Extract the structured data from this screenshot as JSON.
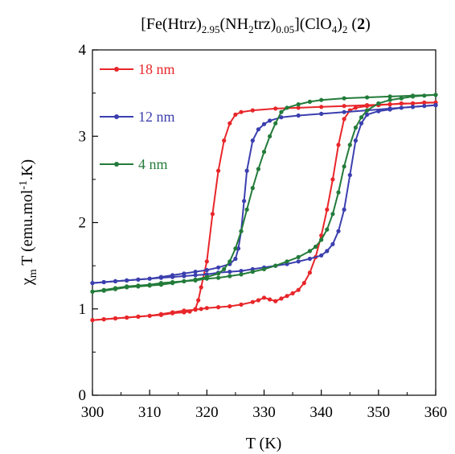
{
  "chart_data": {
    "type": "line",
    "title": {
      "base": "[Fe(Htrz)",
      "sub1": "2.95",
      "mid1": "(NH",
      "sub2": "2",
      "mid2": "trz)",
      "sub3": "0.05",
      "mid3": "](ClO",
      "sub4": "4",
      "mid4": ")",
      "sub5": "2",
      "mid5": " (",
      "bold": "2",
      "end": ")"
    },
    "xlabel": "T (K)",
    "ylabel": {
      "chi": "χ",
      "sub": "m",
      "mid": " T (emu.mol",
      "sup": "-1",
      "end": ".K)"
    },
    "xlim": [
      300,
      360
    ],
    "ylim": [
      0,
      4
    ],
    "x_ticks": [
      "300",
      "310",
      "320",
      "330",
      "340",
      "350",
      "360"
    ],
    "y_ticks": [
      "0",
      "1",
      "2",
      "3",
      "4"
    ],
    "grid": false,
    "legend_position": "top-left",
    "series": [
      {
        "name": "18 nm",
        "color": "#e8262a",
        "heating": [
          [
            300,
            0.87
          ],
          [
            302,
            0.88
          ],
          [
            304,
            0.89
          ],
          [
            306,
            0.9
          ],
          [
            308,
            0.91
          ],
          [
            310,
            0.92
          ],
          [
            312,
            0.94
          ],
          [
            314,
            0.96
          ],
          [
            316,
            0.98
          ],
          [
            318,
            0.99
          ],
          [
            319,
            1.0
          ],
          [
            320,
            1.01
          ],
          [
            322,
            1.02
          ],
          [
            324,
            1.03
          ],
          [
            326,
            1.05
          ],
          [
            328,
            1.08
          ],
          [
            329,
            1.1
          ],
          [
            330,
            1.13
          ],
          [
            331,
            1.11
          ],
          [
            332,
            1.09
          ],
          [
            333,
            1.12
          ],
          [
            334,
            1.15
          ],
          [
            335,
            1.18
          ],
          [
            336,
            1.22
          ],
          [
            337,
            1.3
          ],
          [
            338,
            1.42
          ],
          [
            339,
            1.6
          ],
          [
            340,
            1.85
          ],
          [
            341,
            2.15
          ],
          [
            342,
            2.5
          ],
          [
            343,
            2.9
          ],
          [
            344,
            3.2
          ],
          [
            345,
            3.3
          ],
          [
            346,
            3.33
          ],
          [
            348,
            3.35
          ],
          [
            350,
            3.36
          ],
          [
            352,
            3.37
          ],
          [
            354,
            3.38
          ],
          [
            356,
            3.38
          ],
          [
            358,
            3.39
          ],
          [
            360,
            3.39
          ]
        ],
        "cooling": [
          [
            360,
            3.39
          ],
          [
            356,
            3.38
          ],
          [
            352,
            3.37
          ],
          [
            348,
            3.36
          ],
          [
            344,
            3.35
          ],
          [
            340,
            3.34
          ],
          [
            336,
            3.33
          ],
          [
            332,
            3.32
          ],
          [
            328,
            3.3
          ],
          [
            326,
            3.28
          ],
          [
            325,
            3.25
          ],
          [
            324,
            3.15
          ],
          [
            323,
            2.95
          ],
          [
            322,
            2.6
          ],
          [
            321,
            2.1
          ],
          [
            320,
            1.55
          ],
          [
            319,
            1.25
          ],
          [
            318.5,
            1.1
          ],
          [
            318,
            1.0
          ],
          [
            317,
            0.97
          ],
          [
            316,
            0.96
          ],
          [
            314,
            0.95
          ],
          [
            312,
            0.93
          ],
          [
            310,
            0.92
          ],
          [
            308,
            0.91
          ],
          [
            306,
            0.9
          ],
          [
            304,
            0.89
          ],
          [
            302,
            0.88
          ],
          [
            300,
            0.87
          ]
        ]
      },
      {
        "name": "12 nm",
        "color": "#3b3fae",
        "heating": [
          [
            300,
            1.3
          ],
          [
            302,
            1.31
          ],
          [
            304,
            1.32
          ],
          [
            306,
            1.33
          ],
          [
            308,
            1.34
          ],
          [
            310,
            1.35
          ],
          [
            312,
            1.36
          ],
          [
            314,
            1.37
          ],
          [
            316,
            1.38
          ],
          [
            318,
            1.39
          ],
          [
            320,
            1.4
          ],
          [
            322,
            1.42
          ],
          [
            324,
            1.43
          ],
          [
            326,
            1.44
          ],
          [
            328,
            1.46
          ],
          [
            330,
            1.48
          ],
          [
            332,
            1.5
          ],
          [
            334,
            1.52
          ],
          [
            336,
            1.55
          ],
          [
            338,
            1.58
          ],
          [
            340,
            1.62
          ],
          [
            341,
            1.67
          ],
          [
            342,
            1.75
          ],
          [
            343,
            1.9
          ],
          [
            344,
            2.15
          ],
          [
            345,
            2.55
          ],
          [
            346,
            2.95
          ],
          [
            347,
            3.15
          ],
          [
            348,
            3.25
          ],
          [
            350,
            3.29
          ],
          [
            352,
            3.31
          ],
          [
            354,
            3.33
          ],
          [
            356,
            3.34
          ],
          [
            358,
            3.35
          ],
          [
            360,
            3.36
          ]
        ],
        "cooling": [
          [
            360,
            3.36
          ],
          [
            356,
            3.34
          ],
          [
            352,
            3.32
          ],
          [
            348,
            3.3
          ],
          [
            344,
            3.28
          ],
          [
            340,
            3.26
          ],
          [
            336,
            3.24
          ],
          [
            333,
            3.22
          ],
          [
            331,
            3.18
          ],
          [
            330,
            3.14
          ],
          [
            329,
            3.08
          ],
          [
            328,
            2.95
          ],
          [
            327,
            2.6
          ],
          [
            326.5,
            2.25
          ],
          [
            326,
            1.9
          ],
          [
            325.5,
            1.7
          ],
          [
            325,
            1.58
          ],
          [
            324,
            1.52
          ],
          [
            322,
            1.48
          ],
          [
            320,
            1.45
          ],
          [
            318,
            1.43
          ],
          [
            316,
            1.41
          ],
          [
            314,
            1.39
          ],
          [
            312,
            1.37
          ],
          [
            310,
            1.35
          ],
          [
            308,
            1.34
          ],
          [
            306,
            1.33
          ],
          [
            304,
            1.32
          ],
          [
            302,
            1.31
          ],
          [
            300,
            1.3
          ]
        ]
      },
      {
        "name": "4 nm",
        "color": "#237b3a",
        "heating": [
          [
            300,
            1.2
          ],
          [
            302,
            1.22
          ],
          [
            304,
            1.24
          ],
          [
            306,
            1.26
          ],
          [
            308,
            1.27
          ],
          [
            310,
            1.28
          ],
          [
            312,
            1.3
          ],
          [
            314,
            1.31
          ],
          [
            316,
            1.32
          ],
          [
            318,
            1.33
          ],
          [
            320,
            1.35
          ],
          [
            322,
            1.36
          ],
          [
            324,
            1.38
          ],
          [
            326,
            1.4
          ],
          [
            328,
            1.43
          ],
          [
            330,
            1.46
          ],
          [
            332,
            1.5
          ],
          [
            334,
            1.55
          ],
          [
            336,
            1.6
          ],
          [
            338,
            1.67
          ],
          [
            339,
            1.72
          ],
          [
            340,
            1.8
          ],
          [
            341,
            1.92
          ],
          [
            342,
            2.1
          ],
          [
            343,
            2.35
          ],
          [
            344,
            2.65
          ],
          [
            345,
            2.9
          ],
          [
            346,
            3.1
          ],
          [
            347,
            3.22
          ],
          [
            348,
            3.3
          ],
          [
            350,
            3.38
          ],
          [
            352,
            3.42
          ],
          [
            354,
            3.44
          ],
          [
            356,
            3.46
          ],
          [
            358,
            3.47
          ],
          [
            360,
            3.48
          ]
        ],
        "cooling": [
          [
            360,
            3.48
          ],
          [
            356,
            3.47
          ],
          [
            352,
            3.46
          ],
          [
            348,
            3.45
          ],
          [
            344,
            3.44
          ],
          [
            340,
            3.42
          ],
          [
            338,
            3.4
          ],
          [
            336,
            3.37
          ],
          [
            334,
            3.33
          ],
          [
            333,
            3.28
          ],
          [
            332,
            3.15
          ],
          [
            331,
            3.0
          ],
          [
            330,
            2.82
          ],
          [
            329,
            2.62
          ],
          [
            328,
            2.4
          ],
          [
            327,
            2.15
          ],
          [
            326,
            1.9
          ],
          [
            325,
            1.7
          ],
          [
            324,
            1.55
          ],
          [
            323,
            1.46
          ],
          [
            322,
            1.41
          ],
          [
            320,
            1.37
          ],
          [
            318,
            1.34
          ],
          [
            316,
            1.32
          ],
          [
            314,
            1.3
          ],
          [
            312,
            1.28
          ],
          [
            310,
            1.27
          ],
          [
            308,
            1.26
          ],
          [
            306,
            1.25
          ],
          [
            304,
            1.23
          ],
          [
            302,
            1.21
          ],
          [
            300,
            1.2
          ]
        ]
      }
    ]
  }
}
